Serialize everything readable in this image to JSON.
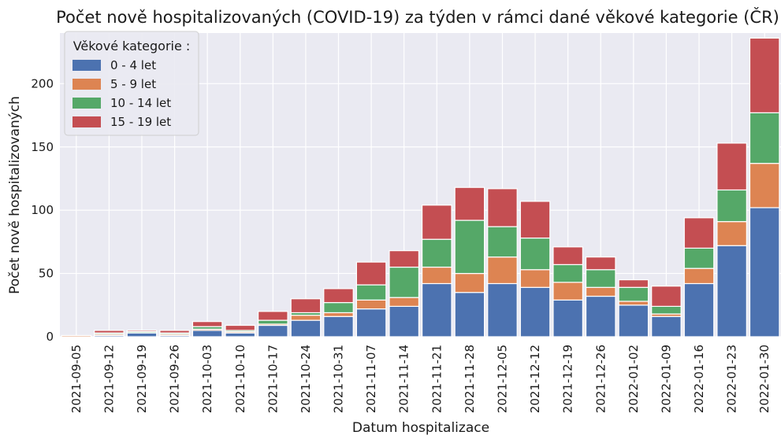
{
  "chart_data": {
    "type": "bar",
    "stacked": true,
    "title": "Počet nově hospitalizovaných (COVID-19) za týden v rámci dané věkové kategorie (ČR)",
    "xlabel": "Datum hospitalizace",
    "ylabel": "Počet nově hospitalizovaných",
    "ylim": [
      0,
      240
    ],
    "yticks": [
      0,
      50,
      100,
      150,
      200
    ],
    "grid": true,
    "legend_title": "Věkové kategorie :",
    "legend_position": "top-left",
    "categories": [
      "2021-09-05",
      "2021-09-12",
      "2021-09-19",
      "2021-09-26",
      "2021-10-03",
      "2021-10-10",
      "2021-10-17",
      "2021-10-24",
      "2021-10-31",
      "2021-11-07",
      "2021-11-14",
      "2021-11-21",
      "2021-11-28",
      "2021-12-05",
      "2021-12-12",
      "2021-12-19",
      "2021-12-26",
      "2022-01-02",
      "2022-01-09",
      "2022-01-16",
      "2022-01-23",
      "2022-01-30"
    ],
    "series": [
      {
        "name": "0 - 4 let",
        "color": "#4c72b0",
        "values": [
          0,
          1,
          3,
          1,
          5,
          3,
          9,
          13,
          16,
          22,
          24,
          42,
          35,
          42,
          39,
          29,
          32,
          25,
          16,
          42,
          72,
          102
        ]
      },
      {
        "name": "5 - 9 let",
        "color": "#dd8452",
        "values": [
          1,
          1,
          0,
          1,
          1,
          1,
          1,
          4,
          3,
          7,
          7,
          13,
          15,
          21,
          14,
          14,
          7,
          3,
          2,
          12,
          19,
          35
        ]
      },
      {
        "name": "10 - 14 let",
        "color": "#55a868",
        "values": [
          0,
          1,
          1,
          1,
          2,
          1,
          3,
          2,
          8,
          12,
          24,
          22,
          42,
          24,
          25,
          14,
          14,
          11,
          6,
          16,
          25,
          40
        ]
      },
      {
        "name": "15 - 19 let",
        "color": "#c44e52",
        "values": [
          0,
          2,
          1,
          2,
          4,
          4,
          7,
          11,
          11,
          18,
          13,
          27,
          26,
          30,
          29,
          14,
          10,
          6,
          16,
          24,
          37,
          59
        ]
      }
    ]
  }
}
